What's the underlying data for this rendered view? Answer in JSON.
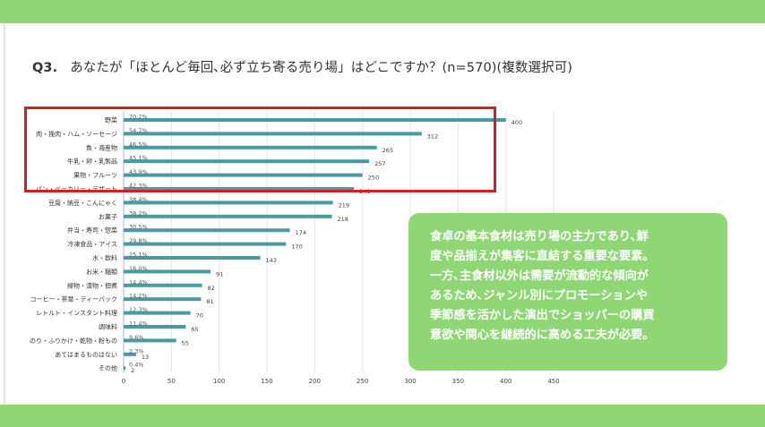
{
  "question": {
    "number": "Q3.",
    "text": "あなたが「ほとんど毎回､必ず立ち寄る売り場」はどこですか？(n=570)(複数選択可)"
  },
  "colors": {
    "band": "#8fd674",
    "bar": "#4a9aa3",
    "highlight": "#d01f25",
    "callout_bg": "#8fd674",
    "callout_text": "#ffffff"
  },
  "callout": {
    "lines": [
      "食卓の基本食材は売り場の主力であり､鮮",
      "度や品揃えが集客に直結する重要な要素。",
      "一方､主食材以外は需要が流動的な傾向が",
      "あるため､ジャンル別にプロモーションや",
      "季節感を活かした演出でショッパーの購買",
      "意欲や関心を継続的に高める工夫が必要。"
    ]
  },
  "chart_data": {
    "type": "bar",
    "orientation": "horizontal",
    "categories": [
      "野菜",
      "肉・挽肉・ハム・ソーセージ",
      "魚・海産物",
      "牛乳・卵・乳製品",
      "果物・フルーツ",
      "パン・ベーカリー・デザート",
      "豆腐・納豆・こんにゃく",
      "お菓子",
      "弁当・寿司・惣菜",
      "冷凍食品・アイス",
      "水・飲料",
      "お米・麺類",
      "緑物・漬物・佃煮",
      "コーヒー・茶葉・ティーバック",
      "レトルト・インスタント料理",
      "調味料",
      "のり・ふりかけ・乾物・粉もの",
      "あてはまるものはない",
      "その他"
    ],
    "values": [
      400,
      312,
      265,
      257,
      250,
      241,
      219,
      218,
      174,
      170,
      143,
      91,
      82,
      81,
      70,
      65,
      55,
      13,
      2
    ],
    "percent_labels": [
      "70.2%",
      "54.7%",
      "46.5%",
      "45.1%",
      "43.9%",
      "42.3%",
      "38.4%",
      "38.2%",
      "30.5%",
      "29.8%",
      "25.1%",
      "16.0%",
      "14.4%",
      "14.2%",
      "12.3%",
      "11.4%",
      "9.6%",
      "2.3%",
      "0.4%"
    ],
    "xlim": [
      0,
      450
    ],
    "xticks": [
      0,
      50,
      100,
      150,
      200,
      250,
      300,
      350,
      400,
      450
    ],
    "grid": true,
    "highlighted_categories": [
      "野菜",
      "肉・挽肉・ハム・ソーセージ",
      "魚・海産物",
      "牛乳・卵・乳製品",
      "果物・フルーツ",
      "パン・ベーカリー・デザート"
    ]
  }
}
